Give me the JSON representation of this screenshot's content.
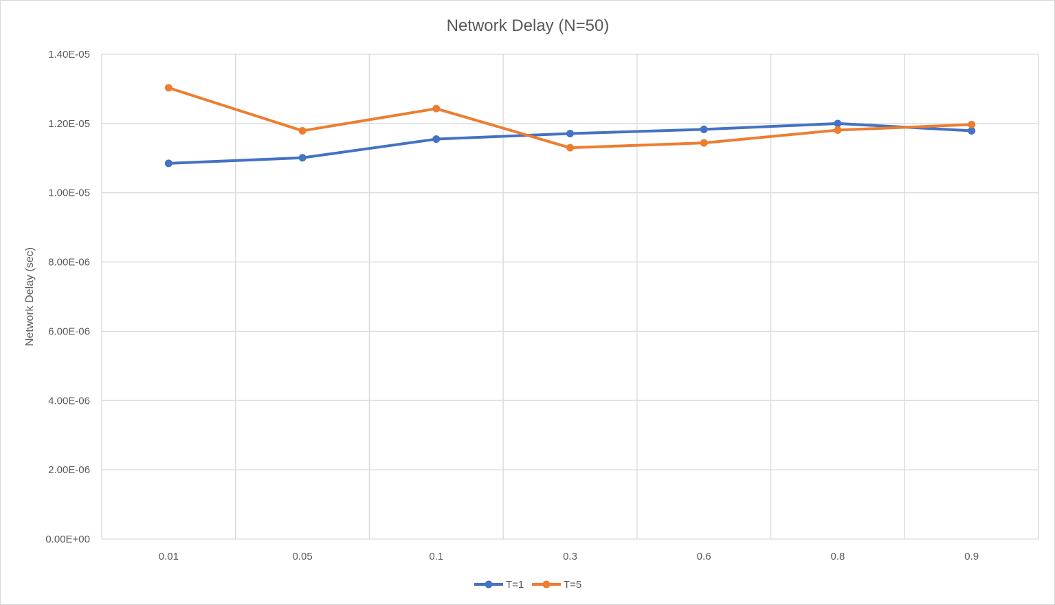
{
  "chart_data": {
    "type": "line",
    "title": "Network Delay (N=50)",
    "xlabel": "",
    "ylabel": "Network Delay (sec)",
    "categories": [
      "0.01",
      "0.05",
      "0.1",
      "0.3",
      "0.6",
      "0.8",
      "0.9"
    ],
    "ylim": [
      0,
      1.4e-05
    ],
    "yticks": [
      0,
      2e-06,
      4e-06,
      6e-06,
      8e-06,
      1e-05,
      1.2e-05,
      1.4e-05
    ],
    "ytick_labels": [
      "0.00E+00",
      "2.00E-06",
      "4.00E-06",
      "6.00E-06",
      "8.00E-06",
      "1.00E-05",
      "1.20E-05",
      "1.40E-05"
    ],
    "grid": true,
    "legend_position": "bottom",
    "series": [
      {
        "name": "T=1",
        "color": "#4472c4",
        "values": [
          1.085e-05,
          1.101e-05,
          1.155e-05,
          1.171e-05,
          1.183e-05,
          1.2e-05,
          1.179e-05
        ]
      },
      {
        "name": "T=5",
        "color": "#ed7d31",
        "values": [
          1.303e-05,
          1.179e-05,
          1.243e-05,
          1.13e-05,
          1.144e-05,
          1.181e-05,
          1.197e-05
        ]
      }
    ]
  }
}
